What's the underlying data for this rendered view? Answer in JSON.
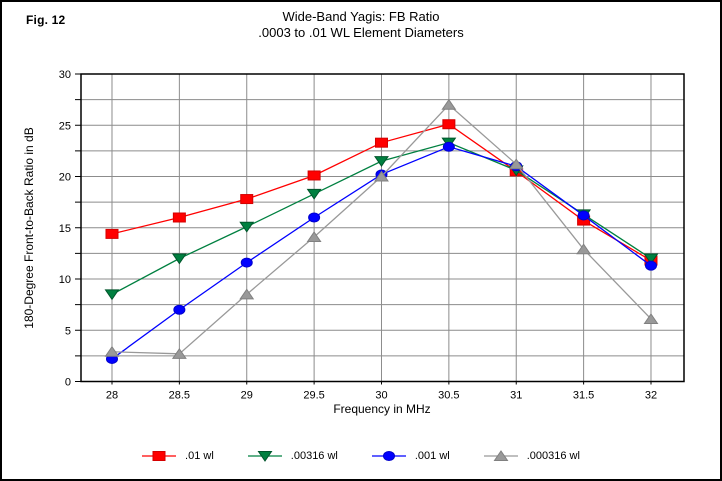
{
  "figure": {
    "label": "Fig. 12"
  },
  "chart_data": {
    "type": "line",
    "title": "Wide-Band Yagis: FB Ratio",
    "subtitle": ".0003 to .01 WL Element Diameters",
    "xlabel": "Frequency in MHz",
    "ylabel": "180-Degree Front-to-Back Ratio in dB",
    "x": [
      28,
      28.5,
      29,
      29.5,
      30,
      30.5,
      31,
      31.5,
      32
    ],
    "x_ticks": [
      28,
      28.5,
      29,
      29.5,
      30,
      30.5,
      31,
      31.5,
      32
    ],
    "y_ticks": [
      0,
      5,
      10,
      15,
      20,
      25,
      30
    ],
    "y_minor_step": 2.5,
    "xlim": [
      27.77,
      32.245
    ],
    "ylim": [
      0,
      30
    ],
    "grid": true,
    "legend_position": "bottom",
    "series": [
      {
        "name": ".01 wl",
        "marker": "square",
        "color": "#ff0000",
        "edge": "#d40000",
        "values": [
          14.4,
          16.0,
          17.8,
          20.1,
          23.3,
          25.1,
          20.5,
          15.7,
          11.8
        ]
      },
      {
        "name": ".00316 wl",
        "marker": "triangle-down",
        "color": "#008040",
        "edge": "#00552b",
        "values": [
          8.5,
          12.0,
          15.1,
          18.3,
          21.5,
          23.3,
          20.6,
          16.3,
          12.0
        ]
      },
      {
        "name": ".001 wl",
        "marker": "circle",
        "color": "#0000ff",
        "edge": "#0000cc",
        "values": [
          2.2,
          7.0,
          11.6,
          16.0,
          20.2,
          22.9,
          21.0,
          16.2,
          11.3
        ]
      },
      {
        "name": ".000316 wl",
        "marker": "triangle-up",
        "color": "#999999",
        "edge": "#808080",
        "values": [
          2.9,
          2.7,
          8.5,
          14.1,
          20.0,
          27.0,
          21.2,
          12.9,
          6.1
        ]
      }
    ]
  },
  "colors": {
    "grid": "#8c8c8c",
    "axis": "#000000",
    "background": "#ffffff",
    "text": "#000000"
  }
}
